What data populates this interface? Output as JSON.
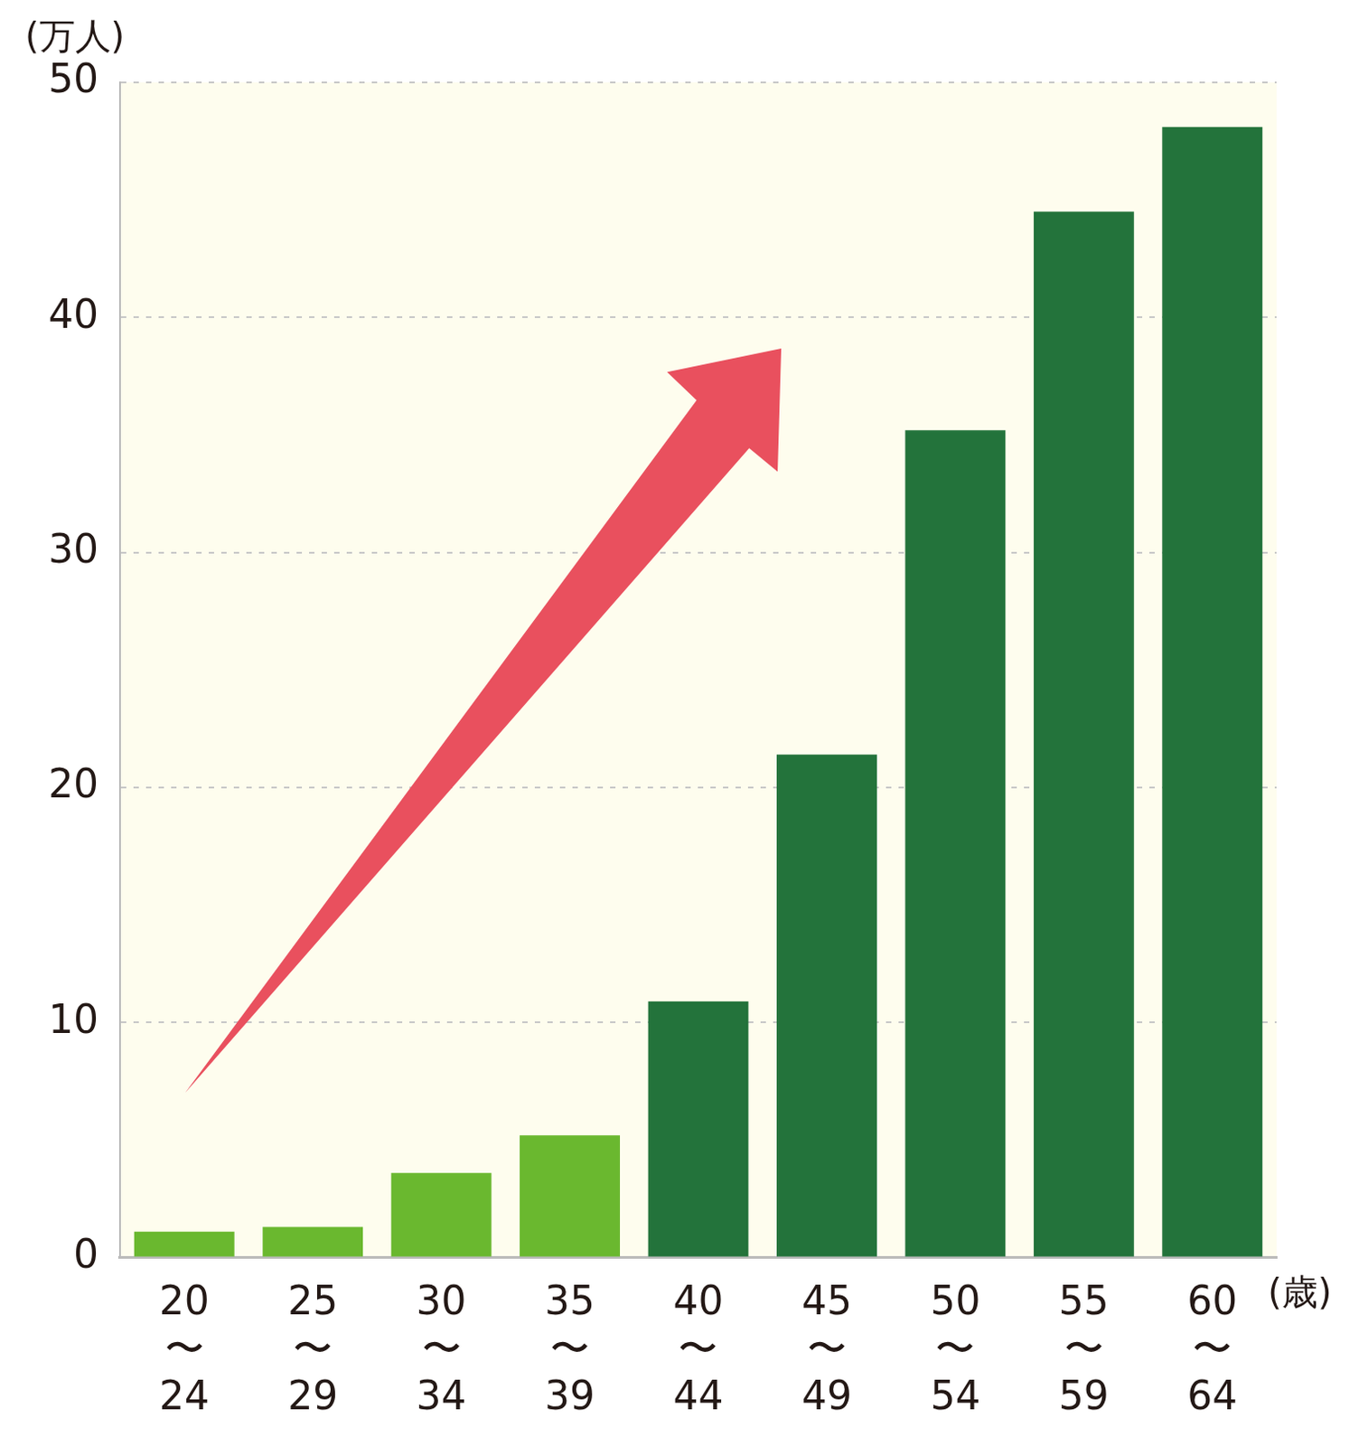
{
  "chart_data": {
    "type": "bar",
    "y_label": "(万人)",
    "x_label": "(歳)",
    "categories": [
      "20〜24",
      "25〜29",
      "30〜34",
      "35〜39",
      "40〜44",
      "45〜49",
      "50〜54",
      "55〜59",
      "60〜64"
    ],
    "values": [
      1.1,
      1.3,
      3.6,
      5.2,
      10.9,
      21.4,
      35.2,
      44.5,
      48.1
    ],
    "colors": [
      "#6ab82f",
      "#6ab82f",
      "#6ab82f",
      "#6ab82f",
      "#23733b",
      "#23733b",
      "#23733b",
      "#23733b",
      "#23733b"
    ],
    "ylim": [
      0,
      50
    ],
    "yticks": [
      0,
      10,
      20,
      30,
      40,
      50
    ],
    "grid": true
  }
}
